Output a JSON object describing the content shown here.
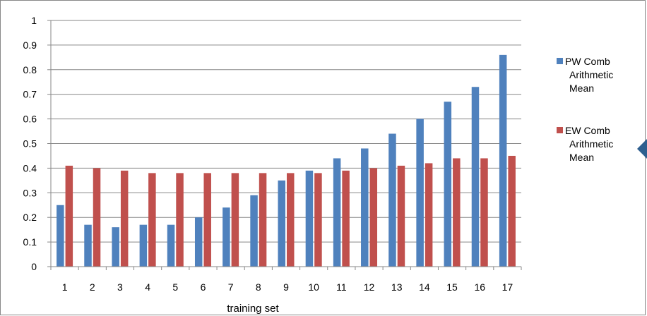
{
  "chart_data": {
    "type": "bar",
    "xlabel": "training set",
    "ylabel": "",
    "ylim": [
      0,
      1
    ],
    "yticks": [
      "0",
      "0.1",
      "0.2",
      "0.3",
      "0.4",
      "0.5",
      "0.6",
      "0.7",
      "0.8",
      "0.9",
      "1"
    ],
    "categories": [
      "1",
      "2",
      "3",
      "4",
      "5",
      "6",
      "7",
      "8",
      "9",
      "10",
      "11",
      "12",
      "13",
      "14",
      "15",
      "16",
      "17"
    ],
    "grid": "horizontal",
    "legend_position": "right",
    "series": [
      {
        "name": "PW Comb Arithmetic Mean",
        "legend_lines": [
          "PW Comb",
          "Arithmetic",
          "Mean"
        ],
        "color": "#4F81BD",
        "values": [
          0.25,
          0.17,
          0.16,
          0.17,
          0.17,
          0.2,
          0.24,
          0.29,
          0.35,
          0.39,
          0.44,
          0.48,
          0.54,
          0.6,
          0.67,
          0.73,
          0.86
        ]
      },
      {
        "name": "EW Comb Arithmetic Mean",
        "legend_lines": [
          "EW Comb",
          "Arithmetic",
          "Mean"
        ],
        "color": "#C0504D",
        "values": [
          0.41,
          0.4,
          0.39,
          0.38,
          0.38,
          0.38,
          0.38,
          0.38,
          0.38,
          0.38,
          0.39,
          0.4,
          0.41,
          0.42,
          0.44,
          0.44,
          0.45
        ]
      }
    ]
  }
}
